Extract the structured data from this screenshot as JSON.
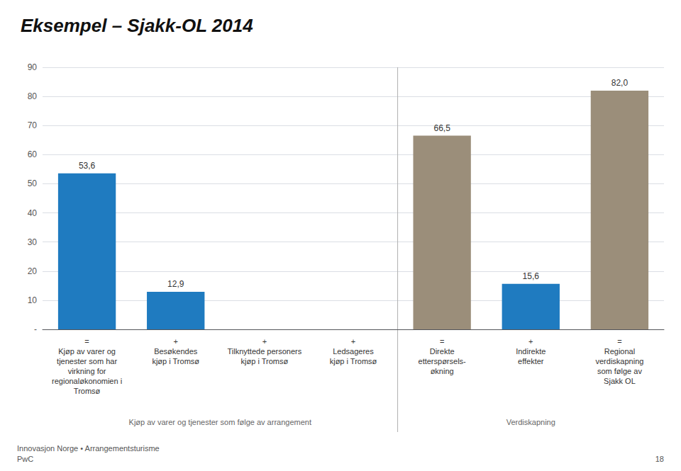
{
  "chart_data": {
    "type": "bar",
    "title": "Eksempel – Sjakk-OL 2014",
    "categories": [
      "Kjøp av varer og\ntjenester som har\nvirkning for\nregionaløkonomien i\nTromsø",
      "Besøkendes\nkjøp i Tromsø",
      "Tilknyttede personers\nkjøp i Tromsø",
      "Ledsageres\nkjøp i Tromsø",
      "Direkte\netterspørsels-\nøkning",
      "Indirekte\neffekter",
      "Regional\nverdiskapning\nsom følge av\nSjakk OL"
    ],
    "values": [
      53.6,
      12.9,
      0,
      0,
      66.5,
      15.6,
      82.0
    ],
    "value_labels": [
      "53,6",
      "12,9",
      null,
      null,
      "66,5",
      "15,6",
      "82,0"
    ],
    "colors": [
      "#1f7bc0",
      "#1f7bc0",
      null,
      null,
      "#9b8e7a",
      "#1f7bc0",
      "#9b8e7a"
    ],
    "data_labels": true,
    "ylim": [
      0,
      90
    ],
    "yticks": [
      {
        "value": 0,
        "label": "-"
      },
      10,
      20,
      30,
      40,
      50,
      60,
      70,
      80,
      90
    ],
    "grid": true,
    "annotations": [
      {
        "text": "=",
        "category": 0
      },
      {
        "text": "+",
        "category": 1
      },
      {
        "text": "+",
        "category": 2
      },
      {
        "text": "+",
        "category": 3
      },
      {
        "text": "=",
        "category": 4
      },
      {
        "text": "+",
        "category": 5
      },
      {
        "text": "=",
        "category": 6
      },
      {
        "text": "Kjøp av varer og tjenester som følge av arrangement",
        "categories": [
          0,
          1,
          2,
          3
        ]
      },
      {
        "text": "Verdiskapning",
        "categories": [
          4,
          5,
          6
        ]
      },
      {
        "text": "Innovasjon Norge • Arrangementsturisme\nPwC"
      },
      {
        "text": "18"
      }
    ]
  }
}
